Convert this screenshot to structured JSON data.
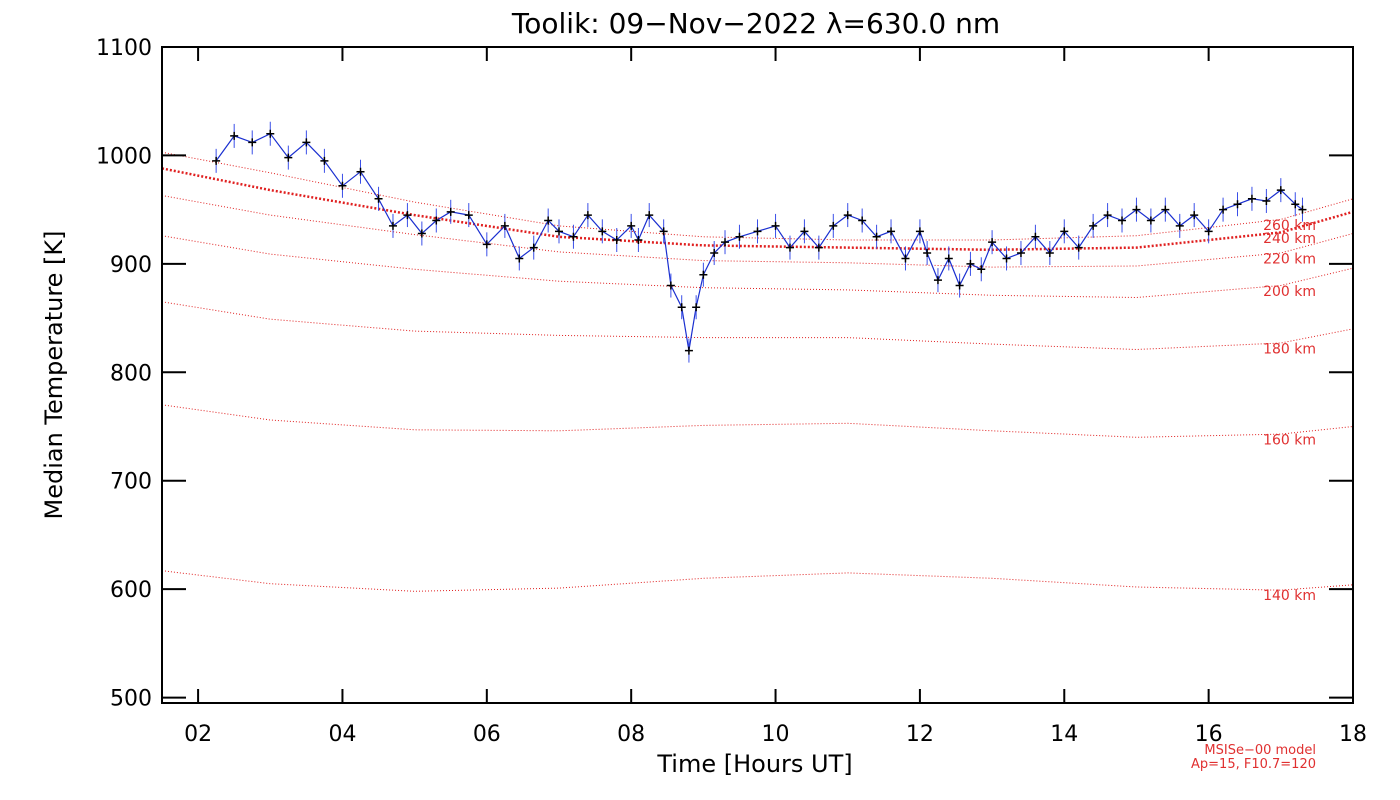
{
  "chart_data": {
    "type": "line",
    "title": "Toolik: 09−Nov−2022 λ=630.0 nm",
    "xlabel": "Time [Hours UT]",
    "ylabel": "Median Temperature [K]",
    "xlim": [
      1.5,
      18
    ],
    "ylim": [
      495,
      1100
    ],
    "xticks": [
      "02",
      "04",
      "06",
      "08",
      "10",
      "12",
      "14",
      "16",
      "18"
    ],
    "yticks": [
      "500",
      "600",
      "700",
      "800",
      "900",
      "1000",
      "1100"
    ],
    "grid": false,
    "annotation": [
      "MSISe−00 model",
      "Ap=15, F10.7=120"
    ],
    "model_curves": [
      {
        "label": "140 km",
        "x": [
          1.5,
          3,
          5,
          7,
          9,
          11,
          13,
          15,
          17,
          18
        ],
        "y": [
          617,
          605,
          598,
          601,
          610,
          615,
          610,
          602,
          599,
          604
        ]
      },
      {
        "label": "160 km",
        "x": [
          1.5,
          3,
          5,
          7,
          9,
          11,
          13,
          15,
          17,
          18
        ],
        "y": [
          770,
          756,
          747,
          746,
          751,
          753,
          746,
          740,
          743,
          750
        ]
      },
      {
        "label": "180 km",
        "x": [
          1.5,
          3,
          5,
          7,
          9,
          11,
          13,
          15,
          17,
          18
        ],
        "y": [
          865,
          849,
          838,
          834,
          832,
          832,
          826,
          821,
          827,
          840
        ]
      },
      {
        "label": "200 km",
        "x": [
          1.5,
          3,
          5,
          7,
          9,
          11,
          13,
          15,
          17,
          18
        ],
        "y": [
          926,
          909,
          895,
          884,
          878,
          876,
          871,
          869,
          880,
          896
        ]
      },
      {
        "label": "220 km",
        "x": [
          1.5,
          3,
          5,
          7,
          9,
          11,
          13,
          15,
          17,
          18
        ],
        "y": [
          963,
          945,
          927,
          911,
          903,
          901,
          897,
          898,
          910,
          928
        ]
      },
      {
        "label": "240 km",
        "x": [
          1.5,
          3,
          5,
          7,
          9,
          11,
          13,
          15,
          17,
          18
        ],
        "y": [
          988,
          968,
          945,
          925,
          917,
          915,
          913,
          915,
          929,
          948
        ]
      },
      {
        "label": "260 km",
        "x": [
          1.5,
          3,
          5,
          7,
          9,
          11,
          13,
          15,
          17,
          18
        ],
        "y": [
          1003,
          984,
          957,
          935,
          925,
          922,
          922,
          926,
          941,
          960
        ]
      }
    ],
    "series": [
      {
        "x": [
          2.25,
          2.5,
          2.75,
          3.0,
          3.25,
          3.5,
          3.75,
          4.0,
          4.25,
          4.5,
          4.7,
          4.9,
          5.1,
          5.3,
          5.5,
          5.75,
          6.0,
          6.25,
          6.45,
          6.65,
          6.85,
          7.0,
          7.2,
          7.4,
          7.6,
          7.8,
          8.0,
          8.1,
          8.25,
          8.45,
          8.55,
          8.7,
          8.8,
          8.9,
          9.0,
          9.15,
          9.3,
          9.5,
          9.75,
          10.0,
          10.2,
          10.4,
          10.6,
          10.8,
          11.0,
          11.2,
          11.4,
          11.6,
          11.8,
          12.0,
          12.1,
          12.25,
          12.4,
          12.55,
          12.7,
          12.85,
          13.0,
          13.2,
          13.4,
          13.6,
          13.8,
          14.0,
          14.2,
          14.4,
          14.6,
          14.8,
          15.0,
          15.2,
          15.4,
          15.6,
          15.8,
          16.0,
          16.2,
          16.4,
          16.6,
          16.8,
          17.0,
          17.2,
          17.3
        ],
        "y": [
          995,
          1018,
          1012,
          1020,
          998,
          1012,
          995,
          972,
          985,
          960,
          935,
          945,
          928,
          940,
          948,
          945,
          918,
          935,
          905,
          915,
          940,
          930,
          925,
          945,
          930,
          922,
          935,
          922,
          945,
          930,
          880,
          860,
          820,
          860,
          890,
          910,
          920,
          925,
          930,
          935,
          915,
          930,
          915,
          935,
          945,
          940,
          925,
          930,
          905,
          930,
          910,
          885,
          905,
          880,
          900,
          895,
          920,
          905,
          910,
          925,
          910,
          930,
          915,
          935,
          945,
          940,
          950,
          940,
          950,
          935,
          945,
          930,
          950,
          955,
          960,
          958,
          968,
          955,
          950
        ]
      }
    ]
  }
}
